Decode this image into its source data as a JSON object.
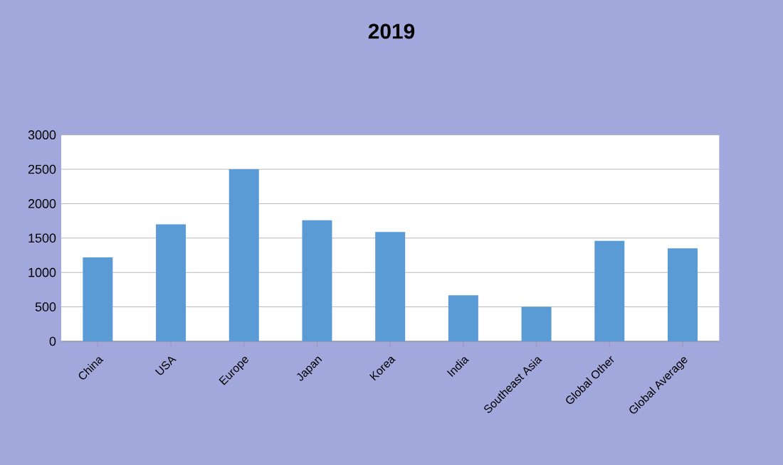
{
  "chart_data": {
    "type": "bar",
    "title": "2019",
    "categories": [
      "China",
      "USA",
      "Europe",
      "Japan",
      "Korea",
      "India",
      "Southeast Asia",
      "Global Other",
      "Global Average"
    ],
    "values": [
      1220,
      1700,
      2500,
      1760,
      1590,
      670,
      500,
      1460,
      1350
    ],
    "color": "#5b9bd5",
    "ylim": [
      0,
      3000
    ],
    "yticks": [
      0,
      500,
      1000,
      1500,
      2000,
      2500,
      3000
    ],
    "grid": "y"
  }
}
